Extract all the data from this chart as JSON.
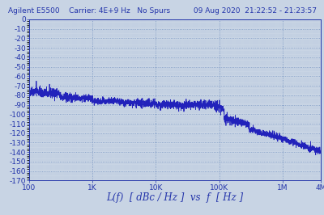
{
  "title_left": "Agilent E5500",
  "title_center": "Carrier: 4E+9 Hz   No Spurs",
  "title_right": "09 Aug 2020  21:22:52 - 21:23:57",
  "xlabel": "L(f)  [ dBc / Hz ]  vs  f  [ Hz ]",
  "xmin": 100,
  "xmax": 4000000,
  "ymin": -170,
  "ymax": 0,
  "yticks": [
    0,
    -10,
    -20,
    -30,
    -40,
    -50,
    -60,
    -70,
    -80,
    -90,
    -100,
    -110,
    -120,
    -130,
    -140,
    -150,
    -160,
    -170
  ],
  "xtick_labels": [
    "100",
    "1K",
    "10K",
    "100K",
    "1M",
    "4M"
  ],
  "xtick_positions": [
    100,
    1000,
    10000,
    100000,
    1000000,
    4000000
  ],
  "line_color": "#2222bb",
  "bg_color": "#c8d4e4",
  "plot_bg": "#c8d4e4",
  "title_color": "#2233aa",
  "grid_color": "#6688bb",
  "title_fontsize": 6.5,
  "tick_fontsize": 6.5,
  "xlabel_fontsize": 8.5
}
